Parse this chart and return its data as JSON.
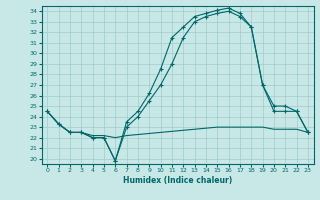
{
  "xlabel": "Humidex (Indice chaleur)",
  "bg_color": "#c8e8e8",
  "line_color": "#006666",
  "grid_color": "#a0cccc",
  "xlim": [
    -0.5,
    23.5
  ],
  "ylim": [
    19.5,
    34.5
  ],
  "yticks": [
    20,
    21,
    22,
    23,
    24,
    25,
    26,
    27,
    28,
    29,
    30,
    31,
    32,
    33,
    34
  ],
  "xticks": [
    0,
    1,
    2,
    3,
    4,
    5,
    6,
    7,
    8,
    9,
    10,
    11,
    12,
    13,
    14,
    15,
    16,
    17,
    18,
    19,
    20,
    21,
    22,
    23
  ],
  "line1_x": [
    0,
    1,
    2,
    3,
    4,
    5,
    6,
    7,
    8,
    9,
    10,
    11,
    12,
    13,
    14,
    15,
    16,
    17,
    18,
    19,
    20,
    21,
    22,
    23
  ],
  "line1_y": [
    24.5,
    23.3,
    22.5,
    22.5,
    22.0,
    22.0,
    19.8,
    23.5,
    24.5,
    26.2,
    28.5,
    31.5,
    32.5,
    33.5,
    33.8,
    34.1,
    34.3,
    33.8,
    32.5,
    27.0,
    24.5,
    24.5,
    24.5,
    22.5
  ],
  "line1_marker": true,
  "line2_x": [
    0,
    1,
    2,
    3,
    4,
    5,
    6,
    7,
    8,
    9,
    10,
    11,
    12,
    13,
    14,
    15,
    16,
    17,
    18,
    19,
    20,
    21,
    22,
    23
  ],
  "line2_y": [
    24.5,
    23.3,
    22.5,
    22.5,
    22.0,
    22.0,
    19.8,
    23.0,
    24.0,
    25.5,
    27.0,
    29.0,
    31.5,
    33.0,
    33.5,
    33.8,
    34.0,
    33.5,
    32.5,
    27.0,
    25.0,
    25.0,
    24.5,
    22.5
  ],
  "line2_marker": true,
  "line3_x": [
    0,
    1,
    2,
    3,
    4,
    5,
    6,
    7,
    8,
    9,
    10,
    11,
    12,
    13,
    14,
    15,
    16,
    17,
    18,
    19,
    20,
    21,
    22,
    23
  ],
  "line3_y": [
    24.5,
    23.3,
    22.5,
    22.5,
    22.2,
    22.2,
    22.0,
    22.2,
    22.3,
    22.4,
    22.5,
    22.6,
    22.7,
    22.8,
    22.9,
    23.0,
    23.0,
    23.0,
    23.0,
    23.0,
    22.8,
    22.8,
    22.8,
    22.5
  ],
  "line3_marker": false
}
